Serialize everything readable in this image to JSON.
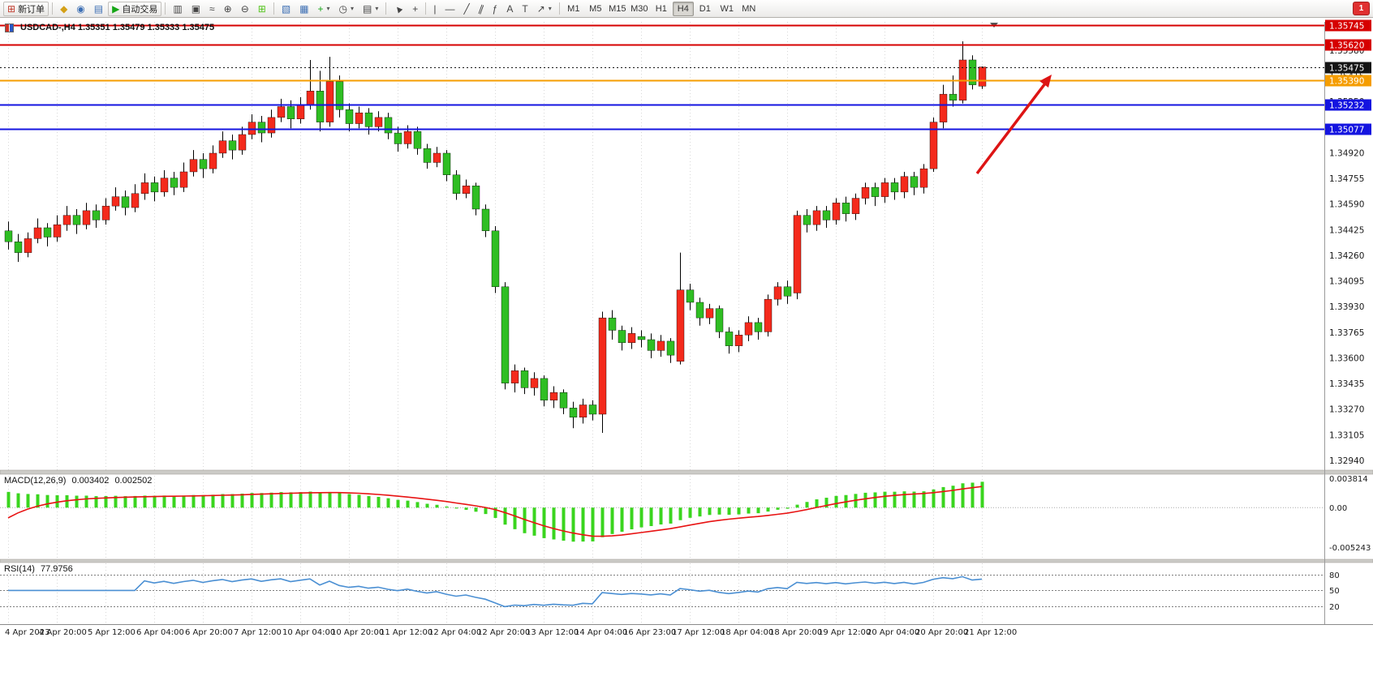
{
  "toolbar": {
    "new_order": "新订单",
    "auto_trading": "自动交易",
    "timeframes": [
      "M1",
      "M5",
      "M15",
      "M30",
      "H1",
      "H4",
      "D1",
      "W1",
      "MN"
    ],
    "active_timeframe": "H4",
    "notification_count": "1"
  },
  "icons": {
    "new_order": "⊞",
    "symbols": "◆",
    "profile": "◉",
    "market": "▤",
    "auto_trading_play": "▶",
    "chart_bars": "▥",
    "chart_candles": "▣",
    "chart_line": "≈",
    "zoom_in": "⊕",
    "zoom_out": "⊖",
    "tile_windows": "⊞",
    "navigator": "▧",
    "data_window": "▦",
    "indicators_plus": "+",
    "periods_clock": "◷",
    "templates": "▤",
    "cursor": "▲",
    "crosshair": "+",
    "vertical_line": "|",
    "horizontal_line": "—",
    "trendline": "╱",
    "channel": "∥",
    "fibonacci": "ƒ",
    "text": "A",
    "text_label": "T",
    "arrows": "↗",
    "dropdown": "▾"
  },
  "chart": {
    "title": "USDCAD-,H4 1.35351 1.35479 1.35333 1.35475"
  },
  "chart_data": {
    "type": "candlestick",
    "symbol": "USDCAD-",
    "timeframe": "H4",
    "quote": {
      "open": "1.35351",
      "high": "1.35479",
      "low": "1.35333",
      "close": "1.35475"
    },
    "colors": {
      "bull": "#f42a1c",
      "bear": "#2fbe23",
      "wick": "#000000"
    },
    "y_axis_labels": [
      "1.35580",
      "1.35415",
      "1.35250",
      "1.35085",
      "1.34920",
      "1.34755",
      "1.34590",
      "1.34425",
      "1.34260",
      "1.34095",
      "1.33930",
      "1.33765",
      "1.33600",
      "1.33435",
      "1.33270",
      "1.33105",
      "1.32940"
    ],
    "x_labels": [
      "4 Apr 2023",
      "4 Apr 20:00",
      "5 Apr 12:00",
      "6 Apr 04:00",
      "6 Apr 20:00",
      "7 Apr 12:00",
      "10 Apr 04:00",
      "10 Apr 20:00",
      "11 Apr 12:00",
      "12 Apr 04:00",
      "12 Apr 20:00",
      "13 Apr 12:00",
      "14 Apr 04:00",
      "16 Apr 23:00",
      "17 Apr 12:00",
      "18 Apr 04:00",
      "18 Apr 20:00",
      "19 Apr 12:00",
      "20 Apr 04:00",
      "20 Apr 20:00",
      "21 Apr 12:00"
    ],
    "levels": [
      {
        "label": "1.35745",
        "price": 1.35745,
        "color": "#d60000",
        "width": 2,
        "style": "solid",
        "name": "resistance-line-1"
      },
      {
        "label": "1.35620",
        "price": 1.3562,
        "color": "#d60000",
        "width": 2,
        "style": "solid",
        "name": "resistance-line-2"
      },
      {
        "label": "1.35475",
        "price": 1.35475,
        "color": "#151515",
        "width": 1,
        "style": "dot",
        "name": "bid-price-line"
      },
      {
        "label": "1.35390",
        "price": 1.3539,
        "color": "#f59d00",
        "width": 2,
        "style": "solid",
        "name": "pivot-line"
      },
      {
        "label": "1.35232",
        "price": 1.35232,
        "color": "#1414e0",
        "width": 2,
        "style": "solid",
        "name": "support-line-1"
      },
      {
        "label": "1.35077",
        "price": 1.35077,
        "color": "#1414e0",
        "width": 2,
        "style": "solid",
        "name": "support-line-2"
      }
    ],
    "candles": [
      [
        1.3442,
        1.3448,
        1.343,
        1.3435
      ],
      [
        1.3435,
        1.344,
        1.3422,
        1.3428
      ],
      [
        1.3428,
        1.3441,
        1.3425,
        1.3437
      ],
      [
        1.3437,
        1.345,
        1.3434,
        1.3444
      ],
      [
        1.3444,
        1.3447,
        1.3432,
        1.3438
      ],
      [
        1.3438,
        1.3452,
        1.3435,
        1.3446
      ],
      [
        1.3446,
        1.3458,
        1.3442,
        1.3452
      ],
      [
        1.3452,
        1.3456,
        1.344,
        1.3446
      ],
      [
        1.3446,
        1.346,
        1.3443,
        1.3455
      ],
      [
        1.3455,
        1.3459,
        1.3444,
        1.3449
      ],
      [
        1.3449,
        1.3463,
        1.3446,
        1.3458
      ],
      [
        1.3458,
        1.347,
        1.3455,
        1.3464
      ],
      [
        1.3464,
        1.3468,
        1.3452,
        1.3457
      ],
      [
        1.3457,
        1.3472,
        1.3454,
        1.3466
      ],
      [
        1.3466,
        1.3479,
        1.3462,
        1.3473
      ],
      [
        1.3473,
        1.3477,
        1.3461,
        1.3467
      ],
      [
        1.3467,
        1.3481,
        1.3464,
        1.3476
      ],
      [
        1.3476,
        1.348,
        1.3465,
        1.347
      ],
      [
        1.347,
        1.3486,
        1.3467,
        1.348
      ],
      [
        1.348,
        1.3494,
        1.3477,
        1.3488
      ],
      [
        1.3488,
        1.3492,
        1.3476,
        1.3482
      ],
      [
        1.3482,
        1.3497,
        1.3479,
        1.3492
      ],
      [
        1.3492,
        1.3506,
        1.3489,
        1.35
      ],
      [
        1.35,
        1.3504,
        1.3488,
        1.3494
      ],
      [
        1.3494,
        1.3509,
        1.3491,
        1.3504
      ],
      [
        1.3504,
        1.3517,
        1.3501,
        1.3512
      ],
      [
        1.3512,
        1.3516,
        1.3499,
        1.3505
      ],
      [
        1.3505,
        1.352,
        1.3502,
        1.3515
      ],
      [
        1.3515,
        1.3527,
        1.3512,
        1.3522
      ],
      [
        1.3522,
        1.3526,
        1.3508,
        1.3514
      ],
      [
        1.3514,
        1.3528,
        1.3511,
        1.3523
      ],
      [
        1.3523,
        1.3552,
        1.352,
        1.3532
      ],
      [
        1.3532,
        1.3545,
        1.3506,
        1.3512
      ],
      [
        1.3512,
        1.3554,
        1.3509,
        1.3538
      ],
      [
        1.3538,
        1.3542,
        1.3515,
        1.352
      ],
      [
        1.352,
        1.3524,
        1.3506,
        1.3511
      ],
      [
        1.3511,
        1.3522,
        1.3508,
        1.3518
      ],
      [
        1.3518,
        1.3521,
        1.3504,
        1.3509
      ],
      [
        1.3509,
        1.3519,
        1.3506,
        1.3515
      ],
      [
        1.3515,
        1.3518,
        1.3501,
        1.3505
      ],
      [
        1.3505,
        1.3509,
        1.3493,
        1.3498
      ],
      [
        1.3498,
        1.351,
        1.3495,
        1.3506
      ],
      [
        1.3506,
        1.3509,
        1.3491,
        1.3495
      ],
      [
        1.3495,
        1.3498,
        1.3482,
        1.3486
      ],
      [
        1.3486,
        1.3496,
        1.3483,
        1.3492
      ],
      [
        1.3492,
        1.3494,
        1.3474,
        1.3478
      ],
      [
        1.3478,
        1.3481,
        1.3462,
        1.3466
      ],
      [
        1.3466,
        1.3475,
        1.3463,
        1.3471
      ],
      [
        1.3471,
        1.3473,
        1.3452,
        1.3456
      ],
      [
        1.3456,
        1.3459,
        1.3438,
        1.3442
      ],
      [
        1.3442,
        1.3445,
        1.3402,
        1.3406
      ],
      [
        1.3406,
        1.3409,
        1.334,
        1.3344
      ],
      [
        1.3344,
        1.3356,
        1.3338,
        1.3352
      ],
      [
        1.3352,
        1.3354,
        1.3337,
        1.3341
      ],
      [
        1.3341,
        1.3351,
        1.3336,
        1.3347
      ],
      [
        1.3347,
        1.3349,
        1.3329,
        1.3333
      ],
      [
        1.3333,
        1.3342,
        1.3328,
        1.3338
      ],
      [
        1.3338,
        1.334,
        1.3324,
        1.3328
      ],
      [
        1.3328,
        1.3332,
        1.3315,
        1.3322
      ],
      [
        1.3322,
        1.3334,
        1.3318,
        1.333
      ],
      [
        1.333,
        1.3333,
        1.332,
        1.3324
      ],
      [
        1.3324,
        1.339,
        1.3312,
        1.3386
      ],
      [
        1.3386,
        1.3391,
        1.3372,
        1.3378
      ],
      [
        1.3378,
        1.3381,
        1.3365,
        1.337
      ],
      [
        1.337,
        1.338,
        1.3366,
        1.3376
      ],
      [
        1.3374,
        1.3378,
        1.3367,
        1.3372
      ],
      [
        1.3372,
        1.3376,
        1.336,
        1.3365
      ],
      [
        1.3365,
        1.3375,
        1.3361,
        1.3371
      ],
      [
        1.3371,
        1.3373,
        1.3357,
        1.3362
      ],
      [
        1.3358,
        1.3428,
        1.3356,
        1.3404
      ],
      [
        1.3404,
        1.3408,
        1.3391,
        1.3396
      ],
      [
        1.3396,
        1.3399,
        1.3381,
        1.3386
      ],
      [
        1.3386,
        1.3395,
        1.3382,
        1.3392
      ],
      [
        1.3392,
        1.3394,
        1.3373,
        1.3377
      ],
      [
        1.3377,
        1.338,
        1.3363,
        1.3368
      ],
      [
        1.3368,
        1.3378,
        1.3364,
        1.3375
      ],
      [
        1.3375,
        1.3387,
        1.3371,
        1.3383
      ],
      [
        1.3383,
        1.3386,
        1.3372,
        1.3377
      ],
      [
        1.3377,
        1.3401,
        1.3374,
        1.3398
      ],
      [
        1.3398,
        1.3409,
        1.3394,
        1.3406
      ],
      [
        1.3406,
        1.341,
        1.3395,
        1.34
      ],
      [
        1.3402,
        1.3455,
        1.3398,
        1.3452
      ],
      [
        1.3452,
        1.3456,
        1.3441,
        1.3446
      ],
      [
        1.3446,
        1.3458,
        1.3442,
        1.3455
      ],
      [
        1.3455,
        1.3458,
        1.3444,
        1.3449
      ],
      [
        1.3449,
        1.3463,
        1.3446,
        1.346
      ],
      [
        1.346,
        1.3464,
        1.3448,
        1.3453
      ],
      [
        1.3453,
        1.3466,
        1.3449,
        1.3463
      ],
      [
        1.3463,
        1.3473,
        1.3459,
        1.347
      ],
      [
        1.347,
        1.3473,
        1.3458,
        1.3464
      ],
      [
        1.3464,
        1.3476,
        1.346,
        1.3473
      ],
      [
        1.3473,
        1.3476,
        1.3462,
        1.3467
      ],
      [
        1.3467,
        1.348,
        1.3463,
        1.3477
      ],
      [
        1.3477,
        1.348,
        1.3465,
        1.347
      ],
      [
        1.347,
        1.3485,
        1.3466,
        1.3482
      ],
      [
        1.3482,
        1.3515,
        1.348,
        1.3512
      ],
      [
        1.3512,
        1.3536,
        1.3508,
        1.353
      ],
      [
        1.353,
        1.3542,
        1.3522,
        1.3526
      ],
      [
        1.3526,
        1.3564,
        1.3524,
        1.3552
      ],
      [
        1.3552,
        1.3555,
        1.3533,
        1.3536
      ],
      [
        1.35351,
        1.35479,
        1.35333,
        1.35475
      ]
    ],
    "macd": {
      "label": "MACD(12,26,9)",
      "value_main": "0.003402",
      "value_signal": "0.002502",
      "histogram_color": "#3ad51e",
      "signal_color": "#e81313",
      "axis_labels": [
        "0.003814",
        "0.00",
        "-0.005243"
      ]
    },
    "rsi": {
      "label": "RSI(14)",
      "value": "77.9756",
      "line_color": "#4a8fd3",
      "levels": [
        "80",
        "50",
        "20"
      ]
    },
    "annotations": [
      {
        "type": "arrow",
        "direction": "up-right",
        "color": "#dd1414"
      }
    ]
  }
}
